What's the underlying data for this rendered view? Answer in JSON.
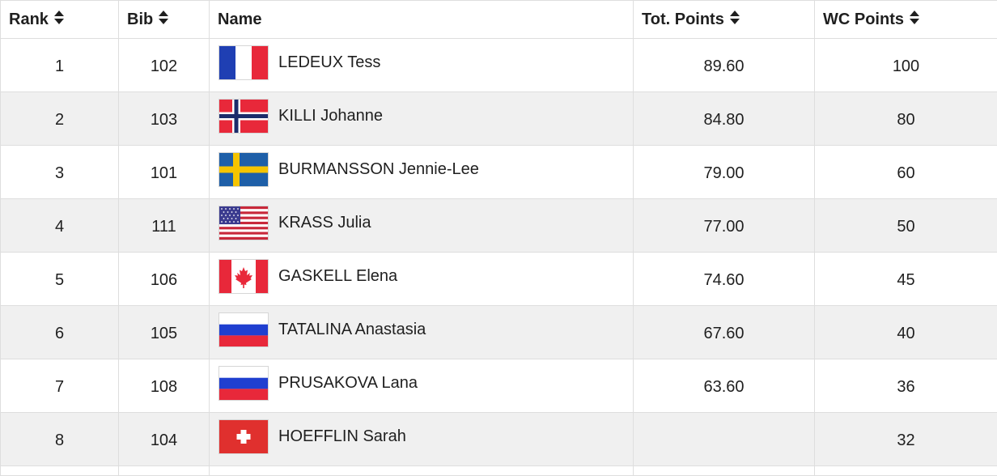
{
  "table": {
    "headers": {
      "rank": "Rank",
      "bib": "Bib",
      "name": "Name",
      "tot_points": "Tot. Points",
      "wc_points": "WC Points"
    },
    "rows": [
      {
        "rank": "1",
        "bib": "102",
        "flag": "france-flag",
        "name": "LEDEUX Tess",
        "tot_points": "89.60",
        "wc_points": "100"
      },
      {
        "rank": "2",
        "bib": "103",
        "flag": "norway-flag",
        "name": "KILLI Johanne",
        "tot_points": "84.80",
        "wc_points": "80"
      },
      {
        "rank": "3",
        "bib": "101",
        "flag": "sweden-flag",
        "name": "BURMANSSON Jennie-Lee",
        "tot_points": "79.00",
        "wc_points": "60"
      },
      {
        "rank": "4",
        "bib": "111",
        "flag": "usa-flag",
        "name": "KRASS Julia",
        "tot_points": "77.00",
        "wc_points": "50"
      },
      {
        "rank": "5",
        "bib": "106",
        "flag": "canada-flag",
        "name": "GASKELL Elena",
        "tot_points": "74.60",
        "wc_points": "45"
      },
      {
        "rank": "6",
        "bib": "105",
        "flag": "russia-flag",
        "name": "TATALINA Anastasia",
        "tot_points": "67.60",
        "wc_points": "40"
      },
      {
        "rank": "7",
        "bib": "108",
        "flag": "russia-flag",
        "name": "PRUSAKOVA Lana",
        "tot_points": "63.60",
        "wc_points": "36"
      },
      {
        "rank": "8",
        "bib": "104",
        "flag": "switzerland-flag",
        "name": "HOEFFLIN Sarah",
        "tot_points": "",
        "wc_points": "32"
      }
    ]
  },
  "colors": {
    "header_bg": "#ffffff",
    "alt_row_bg": "#f0f0f0",
    "border": "#dedede",
    "text": "#1f1f1f"
  },
  "icons": {
    "sort": "sort-updown-icon"
  }
}
